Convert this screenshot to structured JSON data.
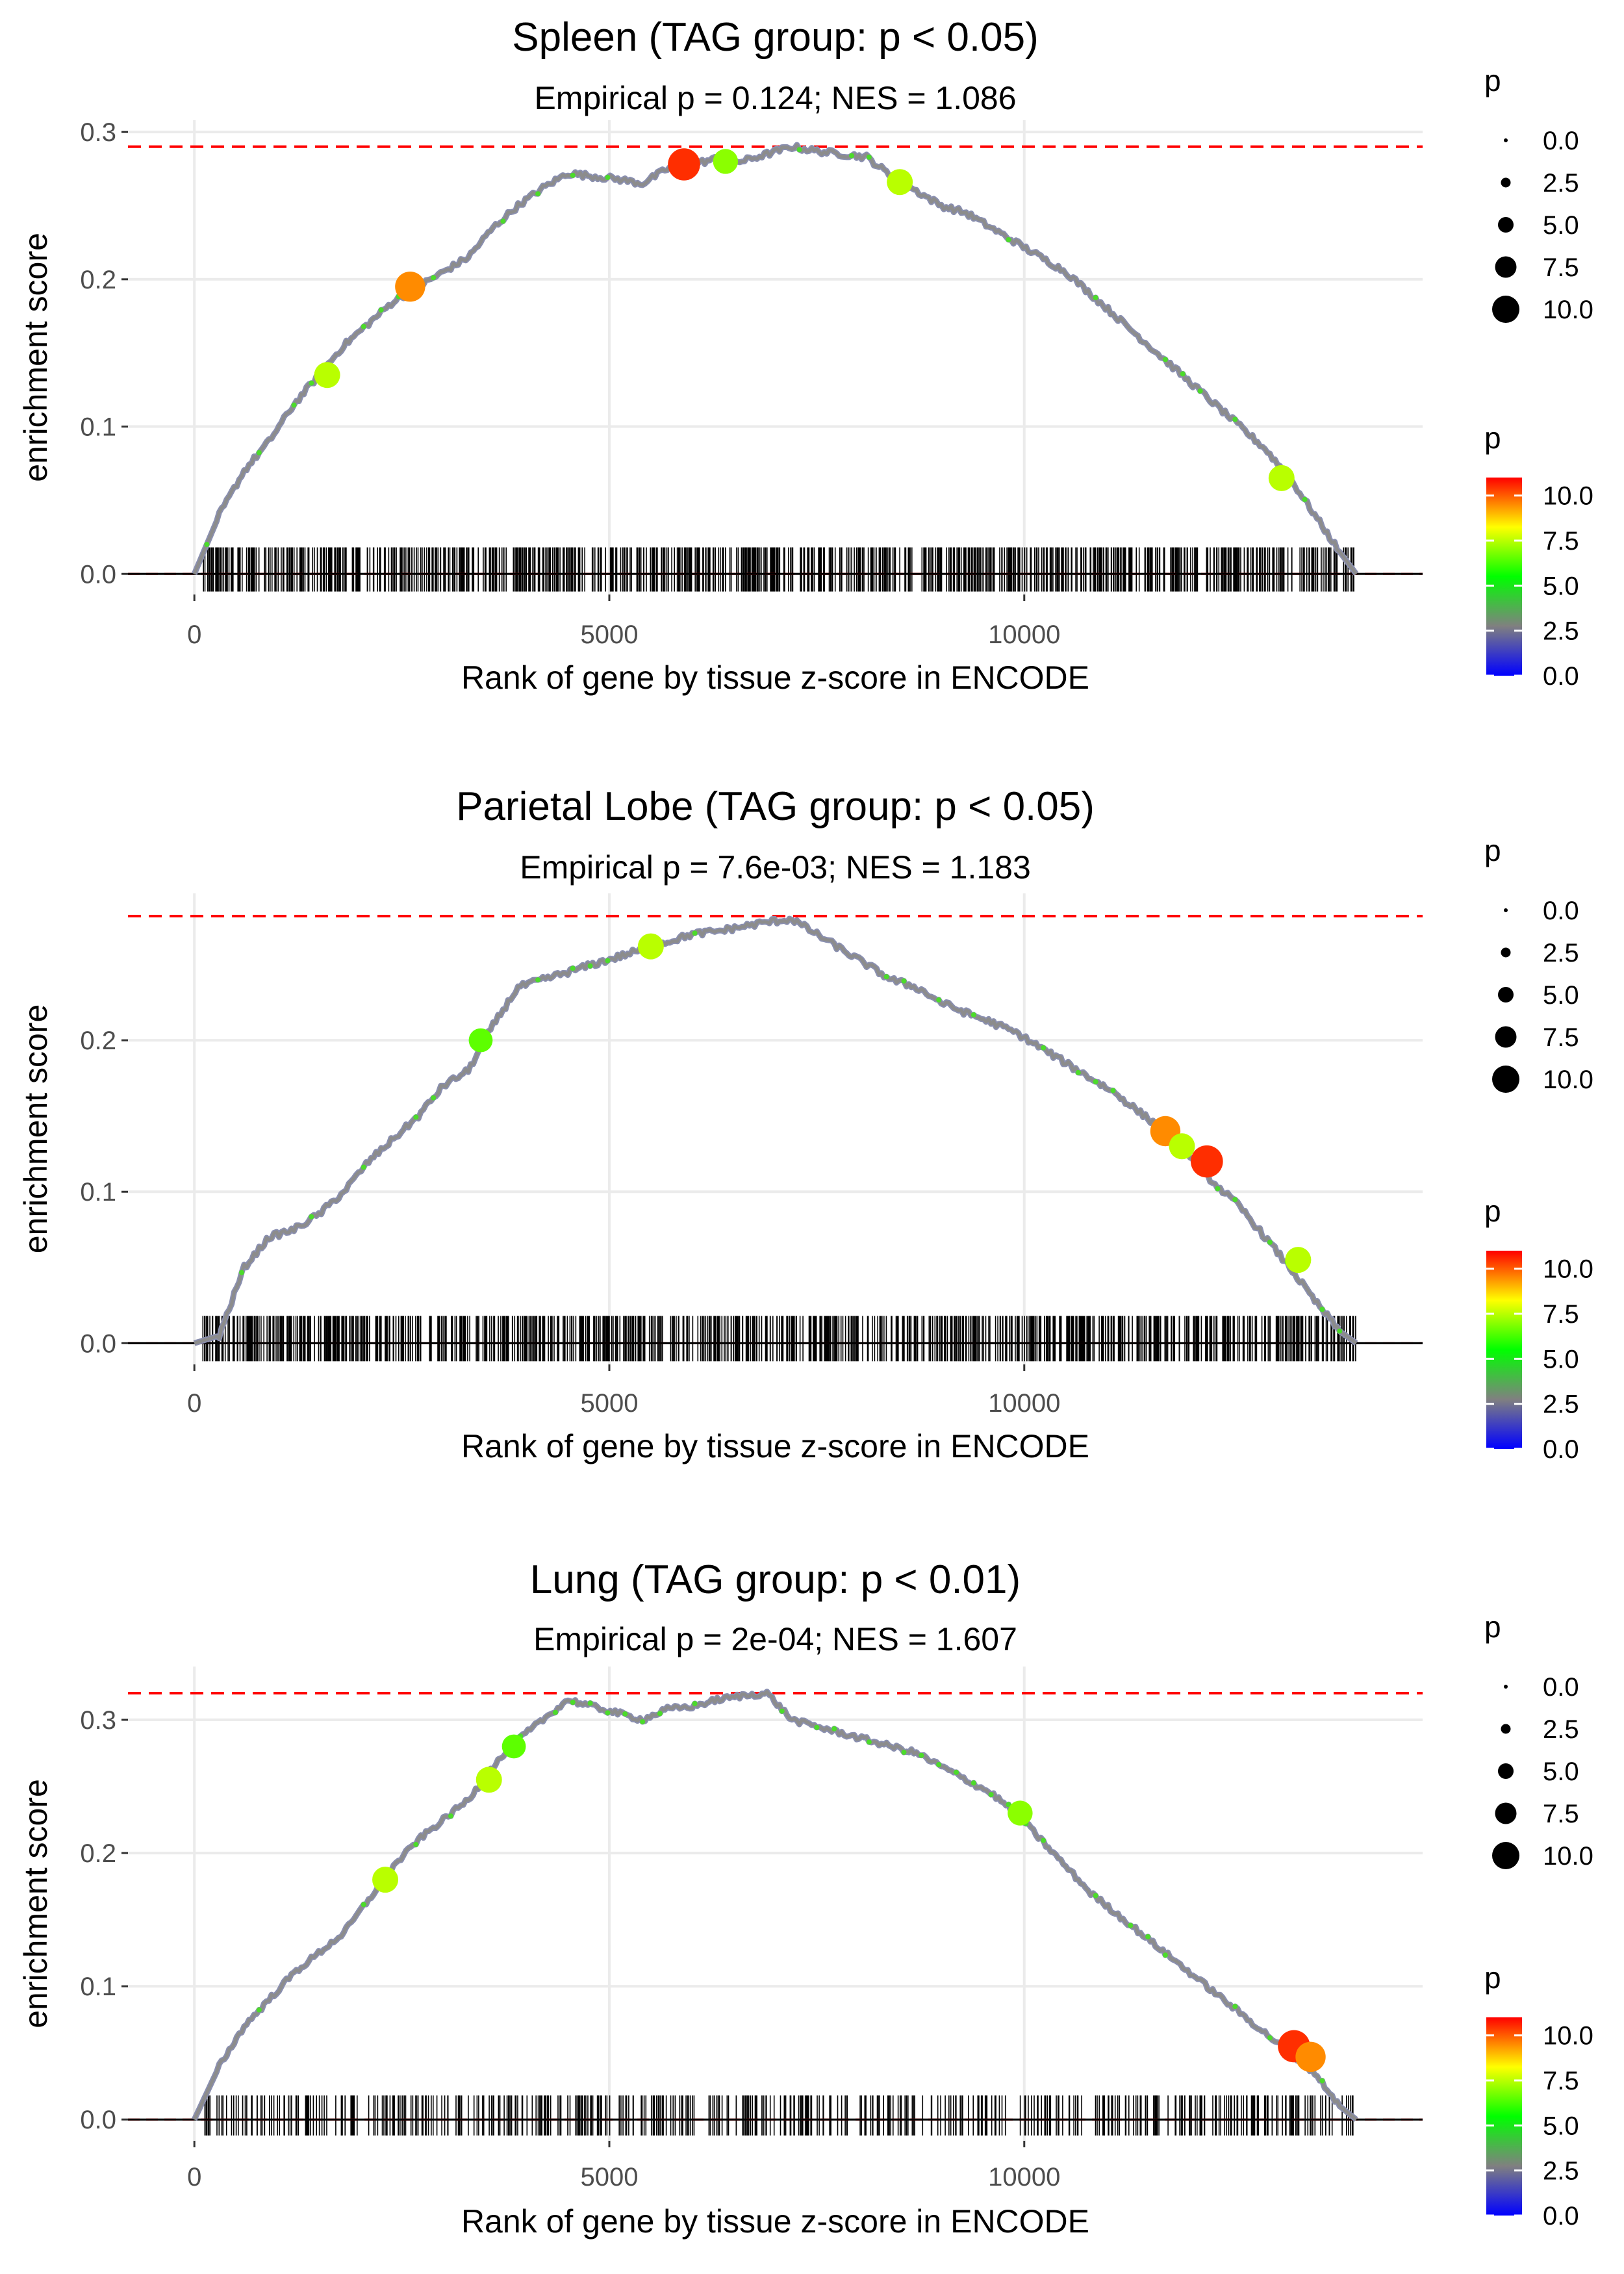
{
  "chart_data": [
    {
      "type": "line",
      "title": "Spleen (TAG group: p < 0.05)",
      "subtitle": "Empirical p = 0.124; NES = 1.086",
      "xlabel": "Rank of gene by tissue z-score in ENCODE",
      "ylabel": "enrichment score",
      "xlim": [
        -800,
        14800
      ],
      "ylim": [
        -0.014,
        0.308
      ],
      "xticks": [
        0,
        5000,
        10000
      ],
      "xtick_labels": [
        "0",
        "5000",
        "10000"
      ],
      "yticks": [
        0.0,
        0.1,
        0.2,
        0.3
      ],
      "ytick_labels": [
        "0.0",
        "0.1",
        "0.2",
        "0.3"
      ],
      "max_es_line": 0.29,
      "curve_x": [
        0,
        300,
        600,
        900,
        1200,
        1500,
        1800,
        2100,
        2400,
        2700,
        3000,
        3300,
        3600,
        3900,
        4200,
        4500,
        4800,
        5100,
        5400,
        5700,
        6000,
        6300,
        6600,
        6900,
        7200,
        7500,
        7800,
        8100,
        8400,
        8700,
        9000,
        9300,
        9600,
        9900,
        10200,
        10500,
        10800,
        11100,
        11400,
        11700,
        12000,
        12300,
        12600,
        12900,
        13200,
        13500,
        13800,
        14000
      ],
      "curve_y": [
        0.0,
        0.04,
        0.07,
        0.09,
        0.115,
        0.135,
        0.155,
        0.17,
        0.185,
        0.195,
        0.205,
        0.215,
        0.235,
        0.25,
        0.262,
        0.272,
        0.27,
        0.268,
        0.265,
        0.275,
        0.278,
        0.282,
        0.28,
        0.285,
        0.29,
        0.287,
        0.285,
        0.283,
        0.27,
        0.26,
        0.25,
        0.245,
        0.235,
        0.225,
        0.215,
        0.205,
        0.19,
        0.175,
        0.16,
        0.145,
        0.13,
        0.115,
        0.1,
        0.085,
        0.065,
        0.04,
        0.015,
        0.0
      ],
      "highlight_points": [
        {
          "x": 1600,
          "y": 0.135,
          "p": 7.5
        },
        {
          "x": 2600,
          "y": 0.195,
          "p": 9.5
        },
        {
          "x": 5900,
          "y": 0.278,
          "p": 10.5
        },
        {
          "x": 6400,
          "y": 0.28,
          "p": 7.0
        },
        {
          "x": 8500,
          "y": 0.266,
          "p": 7.5
        },
        {
          "x": 13100,
          "y": 0.065,
          "p": 7.5
        }
      ],
      "rug_range": [
        100,
        14000
      ],
      "rug_count": 900,
      "legend_size_title": "p",
      "legend_size_labels": [
        "0.0",
        "2.5",
        "5.0",
        "7.5",
        "10.0"
      ],
      "legend_color_title": "p",
      "legend_color_labels": [
        "10.0",
        "7.5",
        "5.0",
        "2.5",
        "0.0"
      ],
      "legend_color_max": 11
    },
    {
      "type": "line",
      "title": "Parietal Lobe (TAG group: p < 0.05)",
      "subtitle": "Empirical p = 7.6e-03; NES = 1.183",
      "xlabel": "Rank of gene by tissue z-score in ENCODE",
      "ylabel": "enrichment score",
      "xlim": [
        -800,
        14800
      ],
      "ylim": [
        -0.014,
        0.297
      ],
      "xticks": [
        0,
        5000,
        10000
      ],
      "xtick_labels": [
        "0",
        "5000",
        "10000"
      ],
      "yticks": [
        0.0,
        0.1,
        0.2
      ],
      "ytick_labels": [
        "0.0",
        "0.1",
        "0.2"
      ],
      "max_es_line": 0.282,
      "curve_x": [
        0,
        300,
        600,
        900,
        1200,
        1500,
        1800,
        2100,
        2400,
        2700,
        3000,
        3300,
        3600,
        3900,
        4200,
        4500,
        4800,
        5100,
        5400,
        5700,
        6000,
        6300,
        6600,
        6900,
        7200,
        7500,
        7800,
        8100,
        8400,
        8700,
        9000,
        9300,
        9600,
        9900,
        10200,
        10500,
        10800,
        11100,
        11400,
        11700,
        12000,
        12300,
        12600,
        12900,
        13200,
        13500,
        13800,
        14000
      ],
      "curve_y": [
        0.0,
        0.005,
        0.05,
        0.07,
        0.075,
        0.085,
        0.1,
        0.12,
        0.135,
        0.15,
        0.17,
        0.18,
        0.21,
        0.235,
        0.24,
        0.245,
        0.25,
        0.255,
        0.26,
        0.265,
        0.27,
        0.272,
        0.275,
        0.278,
        0.28,
        0.27,
        0.26,
        0.25,
        0.24,
        0.235,
        0.225,
        0.218,
        0.212,
        0.205,
        0.195,
        0.185,
        0.175,
        0.165,
        0.152,
        0.14,
        0.122,
        0.105,
        0.09,
        0.07,
        0.05,
        0.028,
        0.008,
        0.0
      ],
      "highlight_points": [
        {
          "x": 3450,
          "y": 0.2,
          "p": 6.5
        },
        {
          "x": 5500,
          "y": 0.262,
          "p": 7.5
        },
        {
          "x": 11700,
          "y": 0.14,
          "p": 9.5
        },
        {
          "x": 11900,
          "y": 0.13,
          "p": 7.5
        },
        {
          "x": 12200,
          "y": 0.12,
          "p": 10.5
        },
        {
          "x": 13300,
          "y": 0.055,
          "p": 7.5
        }
      ],
      "rug_range": [
        100,
        14000
      ],
      "rug_count": 900,
      "legend_size_title": "p",
      "legend_size_labels": [
        "0.0",
        "2.5",
        "5.0",
        "7.5",
        "10.0"
      ],
      "legend_color_title": "p",
      "legend_color_labels": [
        "10.0",
        "7.5",
        "5.0",
        "2.5",
        "0.0"
      ],
      "legend_color_max": 11
    },
    {
      "type": "line",
      "title": "Lung (TAG group: p < 0.01)",
      "subtitle": "Empirical p = 2e-04; NES = 1.607",
      "xlabel": "Rank of gene by tissue z-score in ENCODE",
      "ylabel": "enrichment score",
      "xlim": [
        -800,
        14800
      ],
      "ylim": [
        -0.016,
        0.34
      ],
      "xticks": [
        0,
        5000,
        10000
      ],
      "xtick_labels": [
        "0",
        "5000",
        "10000"
      ],
      "yticks": [
        0.0,
        0.1,
        0.2,
        0.3
      ],
      "ytick_labels": [
        "0.0",
        "0.1",
        "0.2",
        "0.3"
      ],
      "max_es_line": 0.32,
      "curve_x": [
        0,
        300,
        600,
        900,
        1200,
        1500,
        1800,
        2100,
        2400,
        2700,
        3000,
        3300,
        3600,
        3900,
        4200,
        4500,
        4800,
        5100,
        5400,
        5700,
        6000,
        6300,
        6600,
        6900,
        7200,
        7500,
        7800,
        8100,
        8400,
        8700,
        9000,
        9300,
        9600,
        9900,
        10200,
        10500,
        10800,
        11100,
        11400,
        11700,
        12000,
        12300,
        12600,
        12900,
        13200,
        13500,
        13800,
        14000
      ],
      "curve_y": [
        0.0,
        0.04,
        0.07,
        0.09,
        0.11,
        0.125,
        0.14,
        0.165,
        0.19,
        0.21,
        0.225,
        0.24,
        0.265,
        0.285,
        0.3,
        0.315,
        0.31,
        0.305,
        0.3,
        0.308,
        0.31,
        0.315,
        0.318,
        0.32,
        0.3,
        0.295,
        0.29,
        0.285,
        0.28,
        0.275,
        0.265,
        0.255,
        0.245,
        0.23,
        0.21,
        0.19,
        0.17,
        0.155,
        0.14,
        0.125,
        0.11,
        0.095,
        0.08,
        0.065,
        0.05,
        0.035,
        0.01,
        0.0
      ],
      "highlight_points": [
        {
          "x": 2300,
          "y": 0.18,
          "p": 7.5
        },
        {
          "x": 3550,
          "y": 0.255,
          "p": 7.5
        },
        {
          "x": 3850,
          "y": 0.28,
          "p": 6.5
        },
        {
          "x": 9950,
          "y": 0.23,
          "p": 7.0
        },
        {
          "x": 13250,
          "y": 0.055,
          "p": 10.5
        },
        {
          "x": 13450,
          "y": 0.047,
          "p": 9.5
        }
      ],
      "rug_range": [
        100,
        14000
      ],
      "rug_count": 500,
      "legend_size_title": "p",
      "legend_size_labels": [
        "0.0",
        "2.5",
        "5.0",
        "7.5",
        "10.0"
      ],
      "legend_color_title": "p",
      "legend_color_labels": [
        "10.0",
        "7.5",
        "5.0",
        "2.5",
        "0.0"
      ],
      "legend_color_max": 11
    }
  ],
  "colors": {
    "max_line": "#ff0000",
    "gridline": "#ebebeb",
    "curve_low": "#8c8c8c",
    "gradient_stops": [
      "#0000ff",
      "#808080",
      "#00ff00",
      "#ffff00",
      "#ff0000"
    ]
  }
}
